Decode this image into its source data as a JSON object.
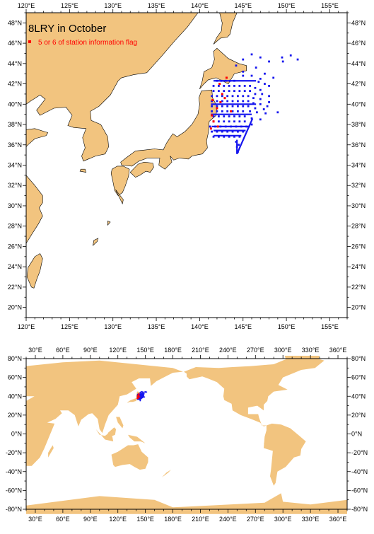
{
  "regional_map": {
    "title": "8LRY in October",
    "legend": {
      "label": "5 or 6 of station information flag",
      "color": "#ff0000"
    },
    "lon_ticks": [
      "120°E",
      "125°E",
      "130°E",
      "135°E",
      "140°E",
      "145°E",
      "150°E",
      "155°E"
    ],
    "lat_ticks": [
      "20°N",
      "22°N",
      "24°N",
      "26°N",
      "28°N",
      "30°N",
      "32°N",
      "34°N",
      "36°N",
      "38°N",
      "40°N",
      "42°N",
      "44°N",
      "46°N",
      "48°N"
    ],
    "extent": {
      "lon": [
        120,
        157
      ],
      "lat": [
        19,
        49
      ]
    }
  },
  "global_map": {
    "lon_ticks": [
      "30°E",
      "60°E",
      "90°E",
      "120°E",
      "150°E",
      "180°E",
      "210°E",
      "240°E",
      "270°E",
      "300°E",
      "330°E",
      "360°E"
    ],
    "lat_ticks": [
      "80°N",
      "60°N",
      "40°N",
      "20°N",
      "0°N",
      "-20°N",
      "-40°N",
      "-60°N",
      "-80°N"
    ],
    "extent": {
      "lon": [
        20,
        370
      ],
      "lat": [
        -80,
        80
      ]
    }
  },
  "colors": {
    "land": "#f2c47f",
    "ocean": "#ffffff",
    "station": "#1515ee",
    "flagged": "#ff0000"
  },
  "stations": {
    "normal": [
      [
        144.2,
        43.8
      ],
      [
        145.0,
        44.4
      ],
      [
        146.0,
        44.9
      ],
      [
        147.0,
        44.6
      ],
      [
        148.0,
        44.2
      ],
      [
        149.5,
        44.6
      ],
      [
        150.5,
        44.8
      ],
      [
        151.3,
        44.4
      ],
      [
        149.6,
        44.2
      ],
      [
        142.0,
        42.3
      ],
      [
        142.5,
        42.3
      ],
      [
        143.0,
        42.3
      ],
      [
        143.5,
        42.3
      ],
      [
        144.0,
        42.3
      ],
      [
        145.0,
        42.8
      ],
      [
        146.0,
        42.8
      ],
      [
        147.0,
        42.5
      ],
      [
        147.5,
        42.0
      ],
      [
        141.6,
        41.8
      ],
      [
        142.2,
        41.8
      ],
      [
        142.8,
        41.8
      ],
      [
        143.4,
        41.8
      ],
      [
        144.0,
        41.8
      ],
      [
        144.6,
        41.8
      ],
      [
        145.2,
        41.8
      ],
      [
        145.8,
        41.8
      ],
      [
        146.4,
        41.6
      ],
      [
        147.0,
        41.4
      ],
      [
        141.6,
        41.3
      ],
      [
        142.2,
        41.3
      ],
      [
        142.8,
        41.3
      ],
      [
        143.4,
        41.3
      ],
      [
        144.0,
        41.3
      ],
      [
        144.6,
        41.3
      ],
      [
        145.2,
        41.3
      ],
      [
        145.8,
        41.3
      ],
      [
        146.4,
        41.0
      ],
      [
        147.2,
        41.0
      ],
      [
        141.4,
        40.8
      ],
      [
        142.0,
        40.8
      ],
      [
        142.6,
        40.8
      ],
      [
        143.2,
        40.8
      ],
      [
        143.8,
        40.8
      ],
      [
        144.4,
        40.8
      ],
      [
        145.0,
        40.8
      ],
      [
        145.6,
        40.8
      ],
      [
        146.2,
        40.6
      ],
      [
        147.0,
        40.5
      ],
      [
        141.4,
        40.3
      ],
      [
        142.0,
        40.3
      ],
      [
        142.6,
        40.3
      ],
      [
        143.2,
        40.3
      ],
      [
        143.8,
        40.3
      ],
      [
        144.4,
        40.3
      ],
      [
        145.0,
        40.3
      ],
      [
        145.6,
        40.3
      ],
      [
        146.2,
        40.1
      ],
      [
        147.0,
        40.0
      ],
      [
        148.0,
        40.2
      ],
      [
        141.4,
        39.8
      ],
      [
        142.0,
        39.8
      ],
      [
        142.6,
        39.8
      ],
      [
        143.2,
        39.8
      ],
      [
        143.8,
        39.8
      ],
      [
        144.4,
        39.8
      ],
      [
        145.0,
        39.8
      ],
      [
        145.6,
        39.8
      ],
      [
        146.4,
        39.6
      ],
      [
        147.4,
        39.5
      ],
      [
        141.4,
        39.3
      ],
      [
        142.0,
        39.3
      ],
      [
        142.6,
        39.3
      ],
      [
        143.2,
        39.3
      ],
      [
        143.8,
        39.3
      ],
      [
        144.4,
        39.3
      ],
      [
        145.0,
        39.3
      ],
      [
        145.8,
        39.3
      ],
      [
        146.6,
        39.2
      ],
      [
        147.6,
        39.1
      ],
      [
        149.0,
        39.2
      ],
      [
        141.6,
        38.8
      ],
      [
        142.2,
        38.8
      ],
      [
        142.8,
        38.8
      ],
      [
        143.4,
        38.8
      ],
      [
        144.0,
        38.8
      ],
      [
        144.6,
        38.8
      ],
      [
        145.2,
        38.8
      ],
      [
        146.0,
        38.6
      ],
      [
        147.0,
        38.5
      ],
      [
        141.6,
        38.3
      ],
      [
        142.2,
        38.3
      ],
      [
        142.8,
        38.3
      ],
      [
        143.4,
        38.3
      ],
      [
        144.0,
        38.3
      ],
      [
        144.6,
        38.3
      ],
      [
        145.2,
        38.3
      ],
      [
        146.0,
        38.0
      ],
      [
        141.2,
        37.8
      ],
      [
        141.8,
        37.8
      ],
      [
        142.4,
        37.8
      ],
      [
        143.0,
        37.8
      ],
      [
        143.6,
        37.8
      ],
      [
        144.2,
        37.8
      ],
      [
        144.8,
        37.8
      ],
      [
        145.4,
        37.8
      ],
      [
        141.4,
        37.3
      ],
      [
        142.0,
        37.3
      ],
      [
        142.6,
        37.3
      ],
      [
        143.2,
        37.3
      ],
      [
        143.8,
        37.3
      ],
      [
        144.4,
        37.3
      ],
      [
        145.0,
        37.3
      ],
      [
        141.6,
        36.8
      ],
      [
        142.2,
        36.8
      ],
      [
        142.8,
        36.8
      ],
      [
        143.4,
        36.8
      ],
      [
        144.0,
        36.8
      ],
      [
        144.6,
        36.8
      ],
      [
        144.2,
        36.3
      ],
      [
        144.3,
        35.8
      ],
      [
        144.4,
        35.3
      ],
      [
        144.5,
        36.0
      ],
      [
        145.0,
        43.2
      ],
      [
        146.5,
        43.6
      ],
      [
        147.5,
        43.0
      ],
      [
        148.5,
        42.6
      ],
      [
        146.8,
        42.2
      ],
      [
        148.0,
        41.8
      ],
      [
        148.0,
        40.8
      ],
      [
        147.8,
        39.8
      ]
    ],
    "tracks": [
      [
        [
          141.6,
          42.3
        ],
        [
          146.5,
          42.3
        ]
      ],
      [
        [
          141.4,
          37.8
        ],
        [
          145.8,
          37.8
        ]
      ],
      [
        [
          141.6,
          37.4
        ],
        [
          145.3,
          37.4
        ]
      ],
      [
        [
          141.6,
          36.9
        ],
        [
          144.8,
          36.9
        ]
      ],
      [
        [
          144.3,
          36.5
        ],
        [
          144.3,
          35.1
        ]
      ],
      [
        [
          144.3,
          35.1
        ],
        [
          146.1,
          38.6
        ]
      ],
      [
        [
          141.3,
          40.0
        ],
        [
          146.5,
          40.0
        ]
      ],
      [
        [
          141.3,
          39.0
        ],
        [
          146.0,
          39.0
        ]
      ]
    ],
    "flagged": [
      [
        142.3,
        42.0
      ],
      [
        142.6,
        41.0
      ],
      [
        141.5,
        40.4
      ],
      [
        142.4,
        40.2
      ],
      [
        142.0,
        39.6
      ],
      [
        141.4,
        38.9
      ],
      [
        143.1,
        42.6
      ],
      [
        142.9,
        40.6
      ],
      [
        143.6,
        39.3
      ],
      [
        141.6,
        38.3
      ],
      [
        141.3,
        37.6
      ],
      [
        142.1,
        37.8
      ]
    ]
  }
}
